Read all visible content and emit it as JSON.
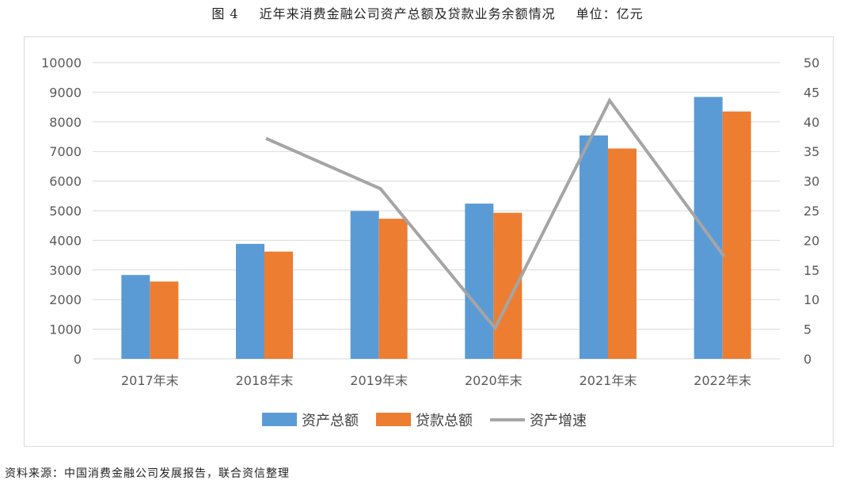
{
  "caption": {
    "figure": "图 4",
    "text": "近年来消费金融公司资产总额及贷款业务余额情况",
    "unit": "单位：亿元"
  },
  "source": "资料来源：中国消费金融公司发展报告，联合资信整理",
  "colors": {
    "assets": "#5b9bd5",
    "loans": "#ed7d31",
    "growth": "#a5a5a5",
    "grid": "#d9d9d9",
    "axis_text": "#595959"
  },
  "chart_data": {
    "type": "bar",
    "categories": [
      "2017年末",
      "2018年末",
      "2019年末",
      "2020年末",
      "2021年末",
      "2022年末"
    ],
    "series": [
      {
        "name": "资产总额",
        "type": "bar",
        "axis": "left",
        "values": [
          2830,
          3880,
          4990,
          5240,
          7540,
          8840
        ]
      },
      {
        "name": "贷款总额",
        "type": "bar",
        "axis": "left",
        "values": [
          2610,
          3620,
          4730,
          4930,
          7100,
          8350
        ]
      },
      {
        "name": "资产增速",
        "type": "line",
        "axis": "right",
        "values": [
          null,
          37.2,
          28.7,
          5.2,
          43.6,
          17.3
        ]
      }
    ],
    "ylim_left": [
      0,
      10000
    ],
    "yticks_left": [
      0,
      1000,
      2000,
      3000,
      4000,
      5000,
      6000,
      7000,
      8000,
      9000,
      10000
    ],
    "ylim_right": [
      0,
      50
    ],
    "yticks_right": [
      0,
      5,
      10,
      15,
      20,
      25,
      30,
      35,
      40,
      45,
      50
    ],
    "grid": true,
    "legend_position": "bottom"
  }
}
